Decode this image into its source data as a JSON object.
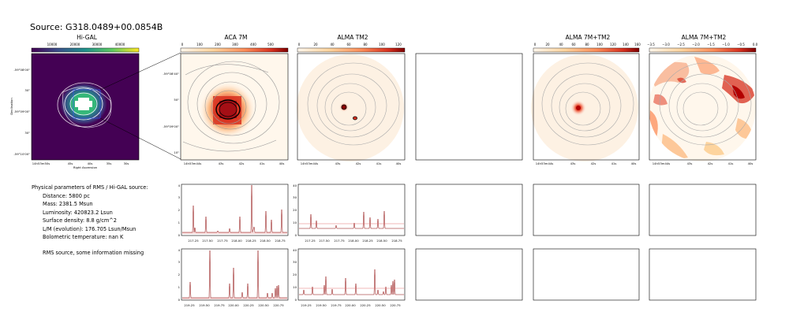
{
  "source_title": "Source: G318.0489+00.0854B",
  "panels": {
    "higal": {
      "title": "Hi-GAL",
      "cbar_ticks": [
        "10000",
        "20000",
        "30000",
        "40000"
      ],
      "yticks": [
        "-59°08'00\"",
        "30\"",
        "-59°09'00\"",
        "30\"",
        "-59°10'00\""
      ],
      "xticks": [
        "14h53m50s",
        "45s",
        "40s",
        "35s",
        "30s"
      ],
      "xlabel": "Right Ascension",
      "ylabel": "Declination"
    },
    "aca7m": {
      "title": "ACA 7M",
      "cbar_ticks": [
        "0",
        "100",
        "200",
        "300",
        "400",
        "500"
      ],
      "yticks": [
        "-59°08'40\"",
        "50\"",
        "-59°09'00\"",
        "10\""
      ],
      "xticks": [
        "14h53m44s",
        "43s",
        "42s",
        "41s",
        "40s"
      ]
    },
    "tm2": {
      "title": "ALMA TM2",
      "cbar_ticks": [
        "0",
        "20",
        "40",
        "60",
        "80",
        "100",
        "120"
      ],
      "xticks": [
        "14h53m44s",
        "43s",
        "42s",
        "41s",
        "40s"
      ]
    },
    "tm7": {
      "title": "ALMA 7M+TM2",
      "cbar_ticks": [
        "0",
        "20",
        "40",
        "60",
        "80",
        "100",
        "120",
        "140",
        "160"
      ],
      "xticks": [
        "14h53m44s",
        "43s",
        "42s",
        "41s",
        "40s"
      ]
    },
    "tm7log": {
      "title": "ALMA 7M+TM2",
      "cbar_ticks": [
        "−3.5",
        "−3.0",
        "−2.5",
        "−2.0",
        "−1.5",
        "−1.0",
        "−0.5",
        "0.0"
      ],
      "xticks": [
        "14h53m44s",
        "43s",
        "42s",
        "41s",
        "40s"
      ]
    }
  },
  "info": {
    "header": "Physical parameters of RMS / Hi-GAL source:",
    "lines": [
      "Distance: 5800 pc",
      "Mass: 2381.5 Msun",
      "Luminosity: 420823.2 Lsun",
      "Surface density: 8.8 g/cm^2",
      "L/M (evolution): 176.705 Lsun/Msun",
      "Bolometric temperature: nan K"
    ],
    "note": "RMS source, some information missing"
  },
  "spectra": {
    "row1": {
      "xticks": [
        "217.25",
        "217.50",
        "217.75",
        "218.00",
        "218.25",
        "218.50",
        "218.75"
      ],
      "aca_yticks": [
        "0",
        "1",
        "2",
        "3",
        "4"
      ],
      "tm2_yticks": [
        "0",
        "10",
        "20",
        "30",
        "40"
      ]
    },
    "row2": {
      "xticks": [
        "219.25",
        "219.50",
        "219.75",
        "220.00",
        "220.25",
        "220.50",
        "220.75"
      ],
      "aca_yticks": [
        "0",
        "1",
        "2",
        "3",
        "4"
      ],
      "tm2_yticks": [
        "0",
        "10",
        "20",
        "30",
        "40"
      ]
    }
  },
  "colors": {
    "spectrum": "#8b0000",
    "overlay": "#e07070",
    "higal_bg": "#440154"
  }
}
